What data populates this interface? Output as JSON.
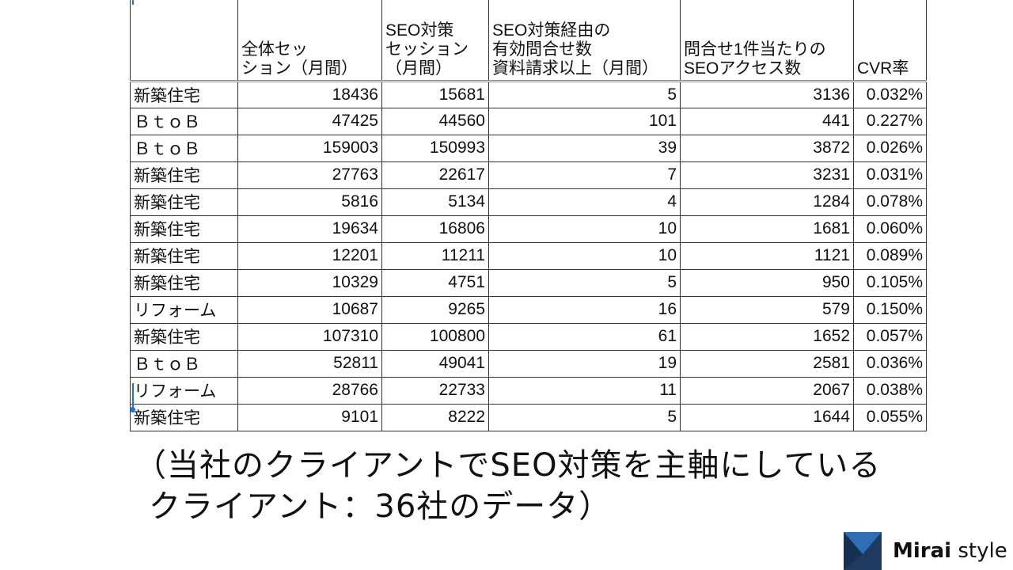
{
  "table": {
    "headers": [
      {
        "lines": [
          ""
        ]
      },
      {
        "lines": [
          "全体セッ",
          "ション（月間）"
        ]
      },
      {
        "lines": [
          "SEO対策",
          "セッション",
          "（月間）"
        ]
      },
      {
        "lines": [
          "SEO対策経由の",
          "有効問合せ数",
          "資料請求以上（月間）"
        ]
      },
      {
        "lines": [
          "問合せ1件当たりの",
          "SEOアクセス数"
        ]
      },
      {
        "lines": [
          "CVR率"
        ]
      }
    ],
    "rows": [
      {
        "category": "新築住宅",
        "total_sessions": "18436",
        "seo_sessions": "15681",
        "inquiries": "5",
        "access_per_inquiry": "3136",
        "cvr": "0.032%"
      },
      {
        "category": "ＢｔｏＢ",
        "total_sessions": "47425",
        "seo_sessions": "44560",
        "inquiries": "101",
        "access_per_inquiry": "441",
        "cvr": "0.227%"
      },
      {
        "category": "ＢｔｏＢ",
        "total_sessions": "159003",
        "seo_sessions": "150993",
        "inquiries": "39",
        "access_per_inquiry": "3872",
        "cvr": "0.026%"
      },
      {
        "category": "新築住宅",
        "total_sessions": "27763",
        "seo_sessions": "22617",
        "inquiries": "7",
        "access_per_inquiry": "3231",
        "cvr": "0.031%"
      },
      {
        "category": "新築住宅",
        "total_sessions": "5816",
        "seo_sessions": "5134",
        "inquiries": "4",
        "access_per_inquiry": "1284",
        "cvr": "0.078%"
      },
      {
        "category": "新築住宅",
        "total_sessions": "19634",
        "seo_sessions": "16806",
        "inquiries": "10",
        "access_per_inquiry": "1681",
        "cvr": "0.060%"
      },
      {
        "category": "新築住宅",
        "total_sessions": "12201",
        "seo_sessions": "11211",
        "inquiries": "10",
        "access_per_inquiry": "1121",
        "cvr": "0.089%"
      },
      {
        "category": "新築住宅",
        "total_sessions": "10329",
        "seo_sessions": "4751",
        "inquiries": "5",
        "access_per_inquiry": "950",
        "cvr": "0.105%"
      },
      {
        "category": "リフォーム",
        "total_sessions": "10687",
        "seo_sessions": "9265",
        "inquiries": "16",
        "access_per_inquiry": "579",
        "cvr": "0.150%"
      },
      {
        "category": "新築住宅",
        "total_sessions": "107310",
        "seo_sessions": "100800",
        "inquiries": "61",
        "access_per_inquiry": "1652",
        "cvr": "0.057%"
      },
      {
        "category": "ＢｔｏＢ",
        "total_sessions": "52811",
        "seo_sessions": "49041",
        "inquiries": "19",
        "access_per_inquiry": "2581",
        "cvr": "0.036%"
      },
      {
        "category": "リフォーム",
        "total_sessions": "28766",
        "seo_sessions": "22733",
        "inquiries": "11",
        "access_per_inquiry": "2067",
        "cvr": "0.038%"
      },
      {
        "category": "新築住宅",
        "total_sessions": "9101",
        "seo_sessions": "8222",
        "inquiries": "5",
        "access_per_inquiry": "1644",
        "cvr": "0.055%"
      }
    ]
  },
  "note": {
    "line1": "（当社のクライアントでSEO対策を主軸にしている",
    "line2": "クライアント：36社のデータ）"
  },
  "brand": {
    "name_bold": "Mirai",
    "name_light": " style",
    "logo_icon": "mirai-style-logo-icon",
    "colors": {
      "navy": "#1f3a5f",
      "blue": "#2f6db5"
    }
  },
  "colors": {
    "selection": "#2a6fd6",
    "border": "#333333"
  }
}
